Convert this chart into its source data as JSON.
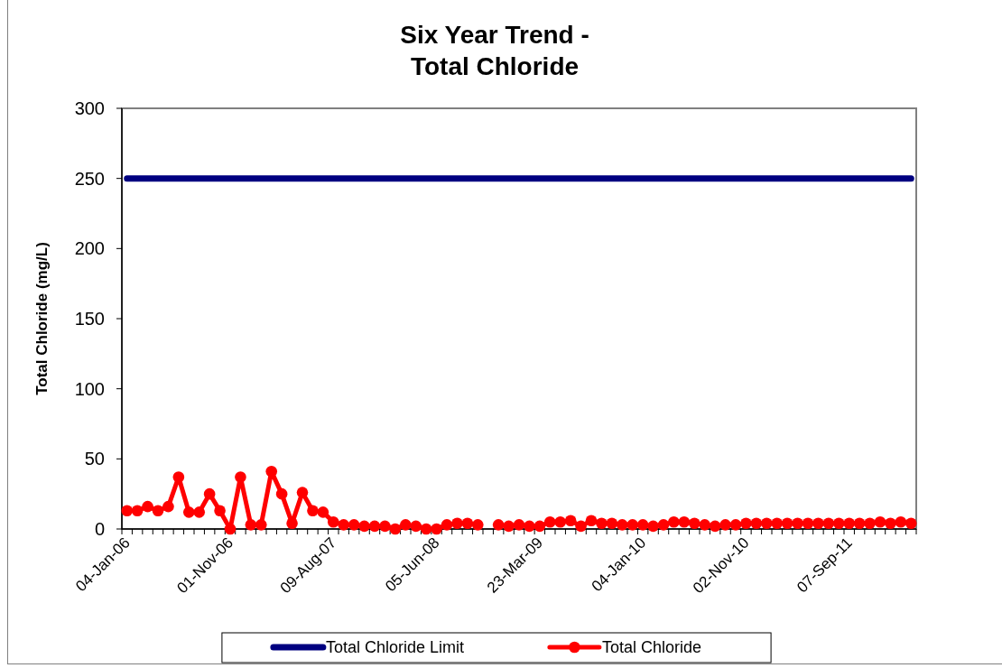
{
  "chart_data": {
    "type": "line",
    "title": "Six Year Trend -\nTotal Chloride",
    "ylabel": "Total Chloride (mg/L)",
    "categories": [
      "04-Jan-06",
      null,
      null,
      null,
      null,
      null,
      null,
      null,
      null,
      null,
      "01-Nov-06",
      null,
      null,
      null,
      null,
      null,
      null,
      null,
      null,
      null,
      "09-Aug-07",
      null,
      null,
      null,
      null,
      null,
      null,
      null,
      null,
      null,
      "05-Jun-08",
      null,
      null,
      null,
      null,
      null,
      null,
      null,
      null,
      null,
      "23-Mar-09",
      null,
      null,
      null,
      null,
      null,
      null,
      null,
      null,
      null,
      "04-Jan-10",
      null,
      null,
      null,
      null,
      null,
      null,
      null,
      null,
      null,
      "02-Nov-10",
      null,
      null,
      null,
      null,
      null,
      null,
      null,
      null,
      null,
      "07-Sep-11",
      null,
      null,
      null,
      null,
      null,
      null
    ],
    "series": [
      {
        "name": "Total Chloride Limit",
        "color": "#000080",
        "marker": "none",
        "values": [
          250,
          250,
          250,
          250,
          250,
          250,
          250,
          250,
          250,
          250,
          250,
          250,
          250,
          250,
          250,
          250,
          250,
          250,
          250,
          250,
          250,
          250,
          250,
          250,
          250,
          250,
          250,
          250,
          250,
          250,
          250,
          250,
          250,
          250,
          250,
          250,
          250,
          250,
          250,
          250,
          250,
          250,
          250,
          250,
          250,
          250,
          250,
          250,
          250,
          250,
          250,
          250,
          250,
          250,
          250,
          250,
          250,
          250,
          250,
          250,
          250,
          250,
          250,
          250,
          250,
          250,
          250,
          250,
          250,
          250,
          250,
          250,
          250,
          250,
          250,
          250,
          250
        ]
      },
      {
        "name": "Total Chloride",
        "color": "#ff0000",
        "marker": "circle",
        "values": [
          13,
          13,
          16,
          13,
          16,
          37,
          12,
          12,
          25,
          13,
          0,
          37,
          3,
          3,
          41,
          25,
          4,
          26,
          13,
          12,
          5,
          3,
          3,
          2,
          2,
          2,
          0,
          3,
          2,
          0,
          0,
          3,
          4,
          4,
          3,
          null,
          3,
          2,
          3,
          2,
          2,
          5,
          5,
          6,
          2,
          6,
          4,
          4,
          3,
          3,
          3,
          2,
          3,
          5,
          5,
          4,
          3,
          2,
          3,
          3,
          4,
          4,
          4,
          4,
          4,
          4,
          4,
          4,
          4,
          4,
          4,
          4,
          4,
          5,
          4,
          5,
          4
        ]
      }
    ],
    "ylim": [
      0,
      300
    ],
    "yticks": [
      0,
      50,
      100,
      150,
      200,
      250,
      300
    ],
    "legend": "bottom"
  }
}
